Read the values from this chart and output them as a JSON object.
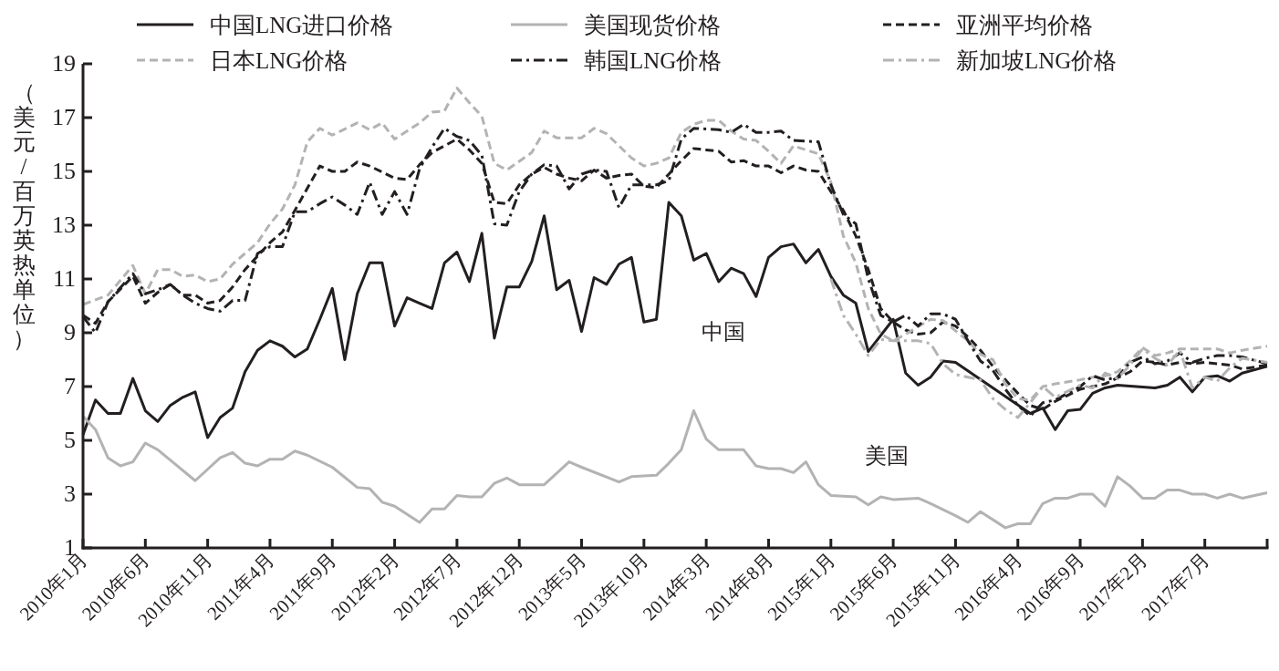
{
  "chart_data": {
    "type": "line",
    "ylabel": "（美元/百万英热单位）",
    "xlim": [
      "2010-01",
      "2017-12"
    ],
    "xticks": [
      {
        "value": "2010-01",
        "label": "2010年1月"
      },
      {
        "value": "2010-06",
        "label": "2010年6月"
      },
      {
        "value": "2010-11",
        "label": "2010年11月"
      },
      {
        "value": "2011-04",
        "label": "2011年4月"
      },
      {
        "value": "2011-09",
        "label": "2011年9月"
      },
      {
        "value": "2012-02",
        "label": "2012年2月"
      },
      {
        "value": "2012-07",
        "label": "2012年7月"
      },
      {
        "value": "2012-12",
        "label": "2012年12月"
      },
      {
        "value": "2013-05",
        "label": "2013年5月"
      },
      {
        "value": "2013-10",
        "label": "2013年10月"
      },
      {
        "value": "2014-03",
        "label": "2014年3月"
      },
      {
        "value": "2014-08",
        "label": "2014年8月"
      },
      {
        "value": "2015-01",
        "label": "2015年1月"
      },
      {
        "value": "2015-06",
        "label": "2015年6月"
      },
      {
        "value": "2015-11",
        "label": "2015年11月"
      },
      {
        "value": "2016-04",
        "label": "2016年4月"
      },
      {
        "value": "2016-09",
        "label": "2016年9月"
      },
      {
        "value": "2017-02",
        "label": "2017年2月"
      },
      {
        "value": "2017-07",
        "label": "2017年7月"
      },
      {
        "value": "2017-12",
        "label": null
      }
    ],
    "ylim": [
      1,
      19
    ],
    "yticks": [
      1,
      3,
      5,
      7,
      9,
      11,
      13,
      15,
      17,
      19
    ],
    "grid": false,
    "legend": "top",
    "marker": "none",
    "annotations": [
      "中国",
      "美国"
    ],
    "series": [
      {
        "name": "中国LNG进口价格",
        "color": "#231f20",
        "line_style": "solid",
        "x": [
          "2010-01",
          "2010-02",
          "2010-03",
          "2010-04",
          "2010-05",
          "2010-06",
          "2010-07",
          "2010-08",
          "2010-09",
          "2010-10",
          "2010-11",
          "2010-12",
          "2011-01",
          "2011-02",
          "2011-03",
          "2011-04",
          "2011-05",
          "2011-06",
          "2011-07",
          "2011-08",
          "2011-09",
          "2011-10",
          "2011-11",
          "2011-12",
          "2012-01",
          "2012-02",
          "2012-03",
          "2012-04",
          "2012-05",
          "2012-06",
          "2012-07",
          "2012-08",
          "2012-09",
          "2012-10",
          "2012-11",
          "2012-12",
          "2013-01",
          "2013-02",
          "2013-03",
          "2013-04",
          "2013-05",
          "2013-06",
          "2013-07",
          "2013-08",
          "2013-09",
          "2013-10",
          "2013-11",
          "2013-12",
          "2014-01",
          "2014-02",
          "2014-03",
          "2014-04",
          "2014-05",
          "2014-06",
          "2014-07",
          "2014-08",
          "2014-09",
          "2014-10",
          "2014-11",
          "2014-12",
          "2015-01",
          "2015-02",
          "2015-03",
          "2015-04",
          "2015-06",
          "2015-07",
          "2015-08",
          "2015-09",
          "2015-10",
          "2015-11",
          "2016-05",
          "2016-06",
          "2016-07",
          "2016-08",
          "2016-09",
          "2016-10",
          "2016-11",
          "2016-12",
          "2017-03",
          "2017-04",
          "2017-05",
          "2017-06",
          "2017-07",
          "2017-08",
          "2017-09",
          "2017-10",
          "2017-12"
        ],
        "values": [
          5.2,
          6.5,
          6.0,
          6.0,
          7.3,
          6.1,
          5.7,
          6.3,
          6.6,
          6.8,
          5.1,
          5.85,
          6.2,
          7.55,
          8.35,
          8.7,
          8.5,
          8.1,
          8.4,
          9.5,
          10.65,
          8.0,
          10.45,
          11.6,
          11.6,
          9.25,
          10.3,
          10.1,
          9.9,
          11.6,
          12.0,
          10.9,
          12.7,
          8.8,
          10.7,
          10.7,
          11.65,
          13.35,
          10.6,
          10.95,
          9.05,
          11.05,
          10.8,
          11.55,
          11.8,
          9.4,
          9.5,
          13.85,
          13.35,
          11.7,
          11.95,
          10.9,
          11.4,
          11.2,
          10.35,
          11.8,
          12.2,
          12.3,
          11.6,
          12.1,
          11.1,
          10.4,
          10.1,
          8.3,
          9.5,
          7.5,
          7.05,
          7.35,
          7.95,
          7.9,
          6.0,
          6.2,
          5.4,
          6.1,
          6.15,
          6.75,
          6.95,
          7.05,
          6.95,
          7.05,
          7.35,
          6.8,
          7.35,
          7.4,
          7.2,
          7.5,
          7.75
        ]
      },
      {
        "name": "美国现货价格",
        "color": "#b3b3b3",
        "line_style": "solid",
        "x": [
          "2010-01",
          "2010-02",
          "2010-03",
          "2010-04",
          "2010-05",
          "2010-06",
          "2010-07",
          "2010-10",
          "2010-12",
          "2011-01",
          "2011-02",
          "2011-03",
          "2011-04",
          "2011-05",
          "2011-06",
          "2011-07",
          "2011-09",
          "2011-11",
          "2011-12",
          "2012-01",
          "2012-02",
          "2012-04",
          "2012-05",
          "2012-06",
          "2012-07",
          "2012-08",
          "2012-09",
          "2012-10",
          "2012-11",
          "2012-12",
          "2013-02",
          "2013-04",
          "2013-05",
          "2013-08",
          "2013-09",
          "2013-11",
          "2013-12",
          "2014-01",
          "2014-02",
          "2014-03",
          "2014-04",
          "2014-06",
          "2014-07",
          "2014-08",
          "2014-09",
          "2014-10",
          "2014-11",
          "2014-12",
          "2015-01",
          "2015-03",
          "2015-04",
          "2015-05",
          "2015-06",
          "2015-08",
          "2015-09",
          "2015-11",
          "2015-12",
          "2016-01",
          "2016-03",
          "2016-04",
          "2016-05",
          "2016-06",
          "2016-07",
          "2016-08",
          "2016-09",
          "2016-10",
          "2016-11",
          "2016-12",
          "2017-01",
          "2017-02",
          "2017-03",
          "2017-04",
          "2017-05",
          "2017-06",
          "2017-07",
          "2017-08",
          "2017-09",
          "2017-10",
          "2017-12"
        ],
        "values": [
          5.9,
          5.4,
          4.35,
          4.05,
          4.2,
          4.9,
          4.65,
          3.5,
          4.35,
          4.55,
          4.15,
          4.05,
          4.3,
          4.3,
          4.6,
          4.45,
          4.0,
          3.25,
          3.2,
          2.7,
          2.55,
          1.95,
          2.45,
          2.45,
          2.95,
          2.9,
          2.9,
          3.4,
          3.6,
          3.35,
          3.35,
          4.2,
          4.0,
          3.45,
          3.65,
          3.7,
          4.15,
          4.65,
          6.1,
          5.05,
          4.65,
          4.65,
          4.05,
          3.95,
          3.95,
          3.8,
          4.2,
          3.35,
          2.95,
          2.9,
          2.6,
          2.9,
          2.8,
          2.85,
          2.65,
          2.2,
          1.95,
          2.35,
          1.75,
          1.9,
          1.9,
          2.65,
          2.85,
          2.85,
          3.0,
          3.0,
          2.55,
          3.65,
          3.3,
          2.85,
          2.85,
          3.15,
          3.15,
          3.0,
          3.0,
          2.85,
          3.0,
          2.85,
          3.05
        ]
      },
      {
        "name": "亚洲平均价格",
        "color": "#231f20",
        "line_style": "dashed",
        "x": [
          "2010-01",
          "2010-02",
          "2010-03",
          "2010-05",
          "2010-06",
          "2010-07",
          "2010-08",
          "2010-09",
          "2010-10",
          "2010-11",
          "2010-12",
          "2011-01",
          "2011-02",
          "2011-04",
          "2011-05",
          "2011-06",
          "2011-08",
          "2011-09",
          "2011-10",
          "2011-11",
          "2011-12",
          "2012-02",
          "2012-03",
          "2012-04",
          "2012-05",
          "2012-06",
          "2012-07",
          "2012-08",
          "2012-09",
          "2012-10",
          "2012-11",
          "2012-12",
          "2013-01",
          "2013-02",
          "2013-03",
          "2013-04",
          "2013-05",
          "2013-06",
          "2013-07",
          "2013-08",
          "2013-09",
          "2013-10",
          "2013-11",
          "2013-12",
          "2014-01",
          "2014-02",
          "2014-03",
          "2014-04",
          "2014-05",
          "2014-06",
          "2014-07",
          "2014-08",
          "2014-09",
          "2014-10",
          "2014-11",
          "2014-12",
          "2015-01",
          "2015-02",
          "2015-03",
          "2015-04",
          "2015-05",
          "2015-06",
          "2015-07",
          "2015-08",
          "2015-09",
          "2015-10",
          "2015-11",
          "2015-12",
          "2016-01",
          "2016-02",
          "2016-03",
          "2016-04",
          "2016-05",
          "2016-06",
          "2016-07",
          "2016-09",
          "2016-10",
          "2016-11",
          "2017-01",
          "2017-02",
          "2017-03",
          "2017-04",
          "2017-05",
          "2017-06",
          "2017-07",
          "2017-08",
          "2017-09",
          "2017-10",
          "2017-12"
        ],
        "values": [
          9.65,
          9.35,
          10.15,
          11.1,
          10.1,
          10.5,
          10.8,
          10.4,
          10.4,
          10.1,
          10.2,
          10.7,
          11.35,
          12.35,
          12.75,
          13.55,
          15.2,
          15.0,
          15.0,
          15.35,
          15.2,
          14.75,
          14.7,
          15.25,
          15.7,
          15.95,
          16.2,
          15.8,
          15.3,
          13.85,
          13.8,
          14.5,
          14.9,
          15.15,
          14.9,
          14.75,
          14.65,
          15.05,
          14.75,
          14.85,
          14.9,
          14.45,
          14.4,
          14.9,
          15.4,
          15.85,
          15.8,
          15.75,
          15.35,
          15.4,
          15.2,
          15.2,
          14.95,
          15.2,
          15.05,
          15.0,
          14.25,
          13.55,
          12.6,
          11.35,
          9.9,
          9.4,
          9.1,
          8.95,
          9.0,
          9.4,
          9.25,
          8.85,
          8.35,
          7.75,
          7.25,
          6.75,
          6.3,
          6.15,
          6.45,
          6.9,
          7.0,
          7.1,
          7.55,
          7.95,
          7.9,
          7.8,
          7.9,
          7.85,
          7.9,
          7.85,
          7.8,
          7.65,
          7.8
        ]
      },
      {
        "name": "日本LNG价格",
        "color": "#b3b3b3",
        "line_style": "dashed",
        "x": [
          "2010-01",
          "2010-03",
          "2010-05",
          "2010-06",
          "2010-07",
          "2010-08",
          "2010-09",
          "2010-10",
          "2010-11",
          "2010-12",
          "2011-01",
          "2011-03",
          "2011-04",
          "2011-05",
          "2011-06",
          "2011-07",
          "2011-08",
          "2011-09",
          "2011-11",
          "2011-12",
          "2012-01",
          "2012-02",
          "2012-03",
          "2012-04",
          "2012-05",
          "2012-06",
          "2012-07",
          "2012-08",
          "2012-09",
          "2012-10",
          "2012-11",
          "2013-01",
          "2013-02",
          "2013-03",
          "2013-05",
          "2013-06",
          "2013-07",
          "2013-09",
          "2013-10",
          "2013-11",
          "2013-12",
          "2014-01",
          "2014-02",
          "2014-03",
          "2014-04",
          "2014-05",
          "2014-06",
          "2014-07",
          "2014-08",
          "2014-09",
          "2014-10",
          "2014-11",
          "2014-12",
          "2015-01",
          "2015-02",
          "2015-03",
          "2015-04",
          "2015-05",
          "2015-06",
          "2015-07",
          "2015-09",
          "2015-10",
          "2015-12",
          "2016-01",
          "2016-02",
          "2016-03",
          "2016-04",
          "2016-05",
          "2016-06",
          "2016-07",
          "2016-09",
          "2016-10",
          "2016-11",
          "2016-12",
          "2017-01",
          "2017-02",
          "2017-03",
          "2017-04",
          "2017-05",
          "2017-06",
          "2017-08",
          "2017-09",
          "2017-10",
          "2017-12"
        ],
        "values": [
          10.05,
          10.4,
          11.5,
          10.45,
          11.35,
          11.35,
          11.1,
          11.15,
          10.9,
          11.0,
          11.55,
          12.35,
          13.05,
          13.6,
          14.5,
          16.1,
          16.6,
          16.35,
          16.8,
          16.55,
          16.8,
          16.2,
          16.5,
          16.8,
          17.2,
          17.25,
          18.1,
          17.55,
          17.05,
          15.3,
          15.05,
          15.7,
          16.5,
          16.25,
          16.25,
          16.6,
          16.4,
          15.5,
          15.2,
          15.3,
          15.5,
          16.45,
          16.75,
          16.9,
          16.9,
          16.5,
          16.2,
          16.15,
          15.75,
          15.3,
          15.95,
          15.8,
          15.65,
          14.6,
          12.6,
          11.6,
          9.9,
          8.95,
          8.7,
          8.95,
          9.5,
          9.45,
          8.7,
          8.2,
          8.0,
          7.1,
          6.55,
          6.5,
          7.0,
          7.1,
          7.25,
          7.35,
          7.4,
          7.55,
          7.95,
          8.45,
          8.15,
          8.25,
          8.4,
          8.4,
          8.4,
          8.25,
          8.35,
          8.5
        ]
      },
      {
        "name": "韩国LNG价格",
        "color": "#231f20",
        "line_style": "dashdot",
        "x": [
          "2010-01",
          "2010-02",
          "2010-03",
          "2010-05",
          "2010-06",
          "2010-07",
          "2010-08",
          "2010-09",
          "2010-10",
          "2010-11",
          "2010-12",
          "2011-01",
          "2011-02",
          "2011-03",
          "2011-04",
          "2011-05",
          "2011-06",
          "2011-07",
          "2011-08",
          "2011-09",
          "2011-10",
          "2011-11",
          "2011-12",
          "2012-01",
          "2012-02",
          "2012-03",
          "2012-04",
          "2012-05",
          "2012-06",
          "2012-07",
          "2012-08",
          "2012-09",
          "2012-10",
          "2012-11",
          "2012-12",
          "2013-01",
          "2013-02",
          "2013-03",
          "2013-04",
          "2013-05",
          "2013-06",
          "2013-07",
          "2013-08",
          "2013-09",
          "2013-10",
          "2013-11",
          "2013-12",
          "2014-01",
          "2014-02",
          "2014-04",
          "2014-05",
          "2014-06",
          "2014-07",
          "2014-08",
          "2014-09",
          "2014-10",
          "2014-12",
          "2015-01",
          "2015-02",
          "2015-03",
          "2015-04",
          "2015-05",
          "2015-06",
          "2015-07",
          "2015-08",
          "2015-09",
          "2015-10",
          "2015-11",
          "2015-12",
          "2016-01",
          "2016-02",
          "2016-03",
          "2016-04",
          "2016-05",
          "2016-06",
          "2016-07",
          "2016-09",
          "2016-10",
          "2016-11",
          "2016-12",
          "2017-01",
          "2017-02",
          "2017-03",
          "2017-04",
          "2017-05",
          "2017-06",
          "2017-07",
          "2017-08",
          "2017-09",
          "2017-10",
          "2017-12"
        ],
        "values": [
          9.6,
          9.0,
          10.15,
          11.2,
          10.45,
          10.6,
          10.8,
          10.4,
          10.1,
          9.9,
          9.8,
          10.2,
          10.2,
          11.95,
          12.2,
          12.2,
          13.5,
          13.5,
          13.8,
          14.05,
          13.75,
          13.4,
          14.6,
          13.4,
          14.25,
          13.4,
          15.1,
          15.9,
          16.6,
          16.3,
          16.15,
          15.6,
          13.05,
          13.0,
          14.25,
          14.9,
          15.25,
          15.2,
          14.35,
          14.9,
          15.05,
          15.0,
          13.65,
          14.5,
          14.5,
          14.5,
          14.65,
          16.2,
          16.6,
          16.55,
          16.45,
          16.75,
          16.45,
          16.45,
          16.5,
          16.15,
          16.1,
          14.5,
          13.4,
          13.05,
          11.0,
          9.65,
          9.4,
          9.65,
          9.25,
          9.7,
          9.7,
          9.5,
          8.7,
          7.95,
          7.6,
          6.9,
          6.3,
          5.9,
          6.4,
          6.5,
          7.0,
          7.4,
          7.25,
          7.35,
          7.9,
          8.1,
          7.85,
          7.95,
          8.25,
          7.9,
          8.05,
          8.15,
          8.15,
          8.1,
          7.85
        ]
      },
      {
        "name": "新加坡LNG价格",
        "color": "#b3b3b3",
        "line_style": "dashdot",
        "x": [
          "2015-01",
          "2015-02",
          "2015-03",
          "2015-04",
          "2015-05",
          "2015-06",
          "2015-08",
          "2015-09",
          "2015-10",
          "2015-11",
          "2016-01",
          "2016-02",
          "2016-03",
          "2016-04",
          "2016-05",
          "2016-06",
          "2016-07",
          "2016-09",
          "2016-10",
          "2016-11",
          "2016-12",
          "2017-01",
          "2017-02",
          "2017-03",
          "2017-04",
          "2017-05",
          "2017-06",
          "2017-07",
          "2017-08",
          "2017-09",
          "2017-10",
          "2017-12"
        ],
        "values": [
          11.0,
          9.65,
          8.95,
          8.15,
          8.75,
          8.7,
          8.7,
          8.6,
          7.85,
          7.45,
          7.25,
          6.55,
          6.15,
          5.85,
          6.4,
          7.0,
          6.6,
          7.05,
          6.95,
          7.5,
          7.3,
          7.8,
          8.4,
          8.05,
          7.8,
          8.35,
          6.95,
          7.35,
          7.2,
          7.7,
          8.05,
          7.9
        ]
      }
    ]
  }
}
